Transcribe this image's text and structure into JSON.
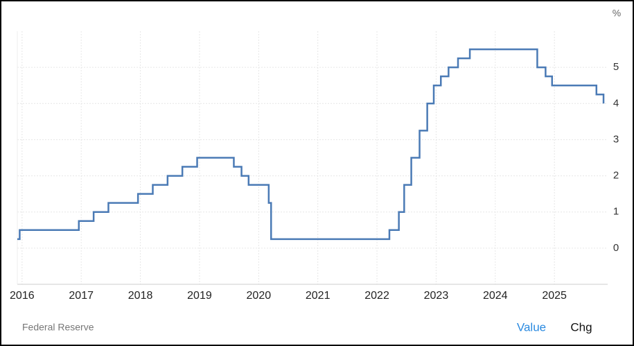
{
  "chart_data": {
    "type": "step-line",
    "y_unit": "%",
    "source": "Federal Reserve",
    "x": [
      2015.92,
      2015.96,
      2015.96,
      2016.96,
      2016.96,
      2017.21,
      2017.21,
      2017.46,
      2017.46,
      2017.96,
      2017.96,
      2018.21,
      2018.21,
      2018.46,
      2018.46,
      2018.71,
      2018.71,
      2018.96,
      2018.96,
      2019.58,
      2019.58,
      2019.71,
      2019.71,
      2019.83,
      2019.83,
      2020.17,
      2020.17,
      2020.21,
      2020.21,
      2022.21,
      2022.21,
      2022.37,
      2022.37,
      2022.46,
      2022.46,
      2022.58,
      2022.58,
      2022.72,
      2022.72,
      2022.85,
      2022.85,
      2022.96,
      2022.96,
      2023.08,
      2023.08,
      2023.21,
      2023.21,
      2023.37,
      2023.37,
      2023.57,
      2023.57,
      2024.71,
      2024.71,
      2024.85,
      2024.85,
      2024.96,
      2024.96,
      2025.71,
      2025.71,
      2025.83,
      2025.83
    ],
    "values": [
      0.25,
      0.25,
      0.5,
      0.5,
      0.75,
      0.75,
      1,
      1,
      1.25,
      1.25,
      1.5,
      1.5,
      1.75,
      1.75,
      2,
      2,
      2.25,
      2.25,
      2.5,
      2.5,
      2.25,
      2.25,
      2,
      2,
      1.75,
      1.75,
      1.25,
      1.25,
      0.25,
      0.25,
      0.5,
      0.5,
      1,
      1,
      1.75,
      1.75,
      2.5,
      2.5,
      3.25,
      3.25,
      4,
      4,
      4.5,
      4.5,
      4.75,
      4.75,
      5,
      5,
      5.25,
      5.25,
      5.5,
      5.5,
      5,
      5,
      4.75,
      4.75,
      4.5,
      4.5,
      4.25,
      4.25,
      4
    ],
    "color": "#4a7ab5",
    "xlim": [
      2015.92,
      2025.9
    ],
    "xticks": [
      2016,
      2017,
      2018,
      2019,
      2020,
      2021,
      2022,
      2023,
      2024,
      2025
    ],
    "ylim": [
      -1,
      6
    ],
    "yticks": [
      0,
      1,
      2,
      3,
      4,
      5
    ],
    "grid": true
  },
  "controls": [
    "Value",
    "Chg"
  ]
}
